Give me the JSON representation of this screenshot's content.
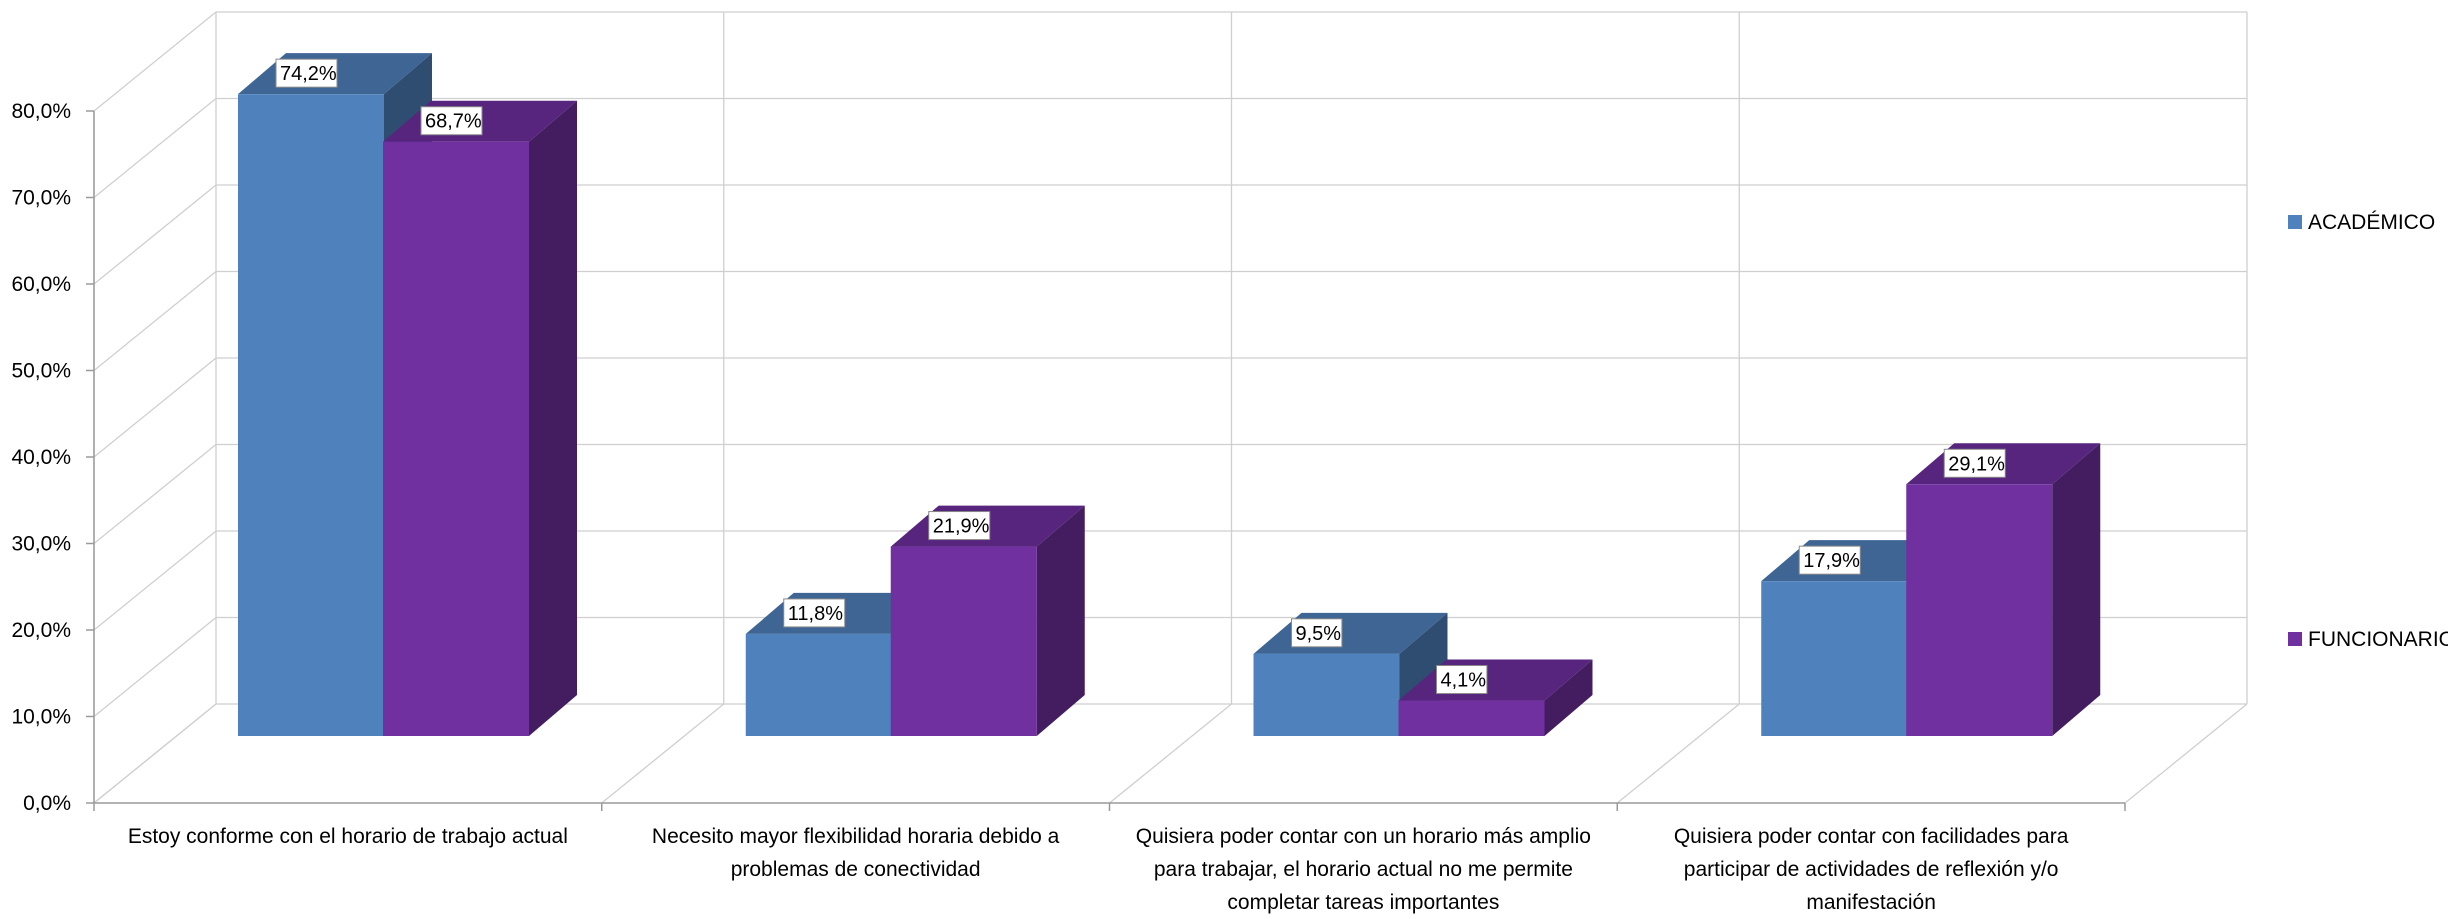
{
  "chart_data": {
    "type": "bar",
    "title": "",
    "xlabel": "",
    "ylabel": "",
    "ylim": [
      0,
      80
    ],
    "y_ticks": [
      "0,0%",
      "10,0%",
      "20,0%",
      "30,0%",
      "40,0%",
      "50,0%",
      "60,0%",
      "70,0%",
      "80,0%"
    ],
    "grid": true,
    "three_d": true,
    "legend_position": "right",
    "categories": [
      [
        "Estoy conforme con el horario de trabajo actual"
      ],
      [
        "Necesito mayor flexibilidad horaria debido a",
        "problemas de conectividad"
      ],
      [
        "Quisiera poder contar con un horario más amplio",
        "para trabajar, el horario actual no me permite",
        "completar tareas importantes"
      ],
      [
        "Quisiera poder contar con facilidades para",
        "participar de actividades de reflexión y/o",
        "manifestación"
      ]
    ],
    "series": [
      {
        "name": "ACADÉMICO",
        "color": "#4F81BD",
        "values": [
          74.2,
          11.8,
          9.5,
          17.9
        ],
        "labels": [
          "74,2%",
          "11,8%",
          "9,5%",
          "17,9%"
        ]
      },
      {
        "name": "FUNCIONARIO",
        "color": "#7030A0",
        "values": [
          68.7,
          21.9,
          4.1,
          29.1
        ],
        "labels": [
          "68,7%",
          "21,9%",
          "4,1%",
          "29,1%"
        ]
      }
    ]
  }
}
